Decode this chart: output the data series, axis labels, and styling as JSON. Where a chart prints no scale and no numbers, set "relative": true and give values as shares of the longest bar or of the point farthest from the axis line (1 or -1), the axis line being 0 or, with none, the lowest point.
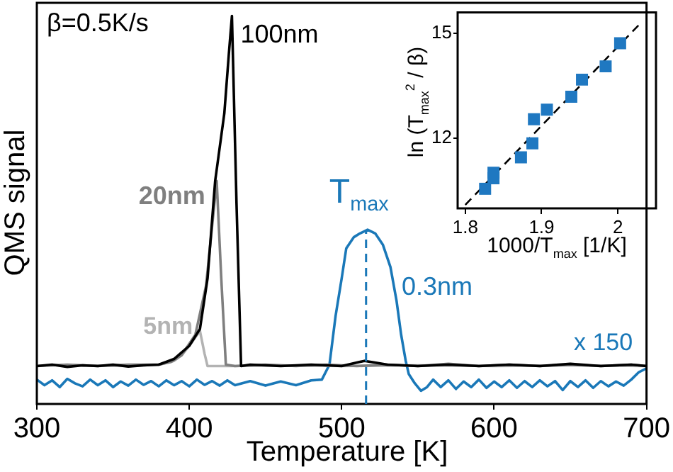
{
  "chart_data": [
    {
      "type": "line",
      "xlabel": "Temperature  [K]",
      "ylabel": "QMS signal",
      "relative": true,
      "xlim": [
        300,
        700
      ],
      "xticks": [
        300,
        400,
        500,
        600,
        700
      ],
      "tick_labels": "x",
      "legend": false,
      "grid": false,
      "annotations": [
        "β=0.5K/s",
        "x 150"
      ],
      "ref_lines": [
        {
          "axis": "x",
          "value": 516,
          "label": "T$_{max}$",
          "color": "#1a78b8",
          "line_style": "dashed"
        }
      ],
      "series": [
        {
          "name": "100nm",
          "color": "#000000",
          "x": [
            300,
            310,
            320,
            330,
            340,
            350,
            360,
            370,
            380,
            390,
            400,
            407,
            412,
            417,
            423,
            426,
            428,
            431,
            434,
            440,
            460,
            480,
            500,
            515,
            530,
            550,
            570,
            590,
            610,
            630,
            650,
            670,
            690,
            700
          ],
          "values": [
            0.066,
            0.07,
            0.064,
            0.068,
            0.066,
            0.07,
            0.065,
            0.068,
            0.07,
            0.085,
            0.12,
            0.165,
            0.3,
            0.56,
            0.74,
            0.9,
            1,
            0.5,
            0.066,
            0.07,
            0.066,
            0.07,
            0.066,
            0.08,
            0.07,
            0.066,
            0.07,
            0.066,
            0.07,
            0.066,
            0.072,
            0.066,
            0.07,
            0.066
          ]
        },
        {
          "name": "20nm",
          "color": "#7f7f7f",
          "x": [
            300,
            320,
            340,
            360,
            380,
            388,
            395,
            404,
            411,
            418,
            421,
            424,
            430,
            450,
            470,
            490,
            510,
            530,
            550,
            570,
            590,
            610,
            630,
            650,
            670,
            690,
            700
          ],
          "values": [
            0.066,
            0.07,
            0.066,
            0.07,
            0.07,
            0.077,
            0.095,
            0.15,
            0.28,
            0.56,
            0.3,
            0.07,
            0.066,
            0.07,
            0.066,
            0.07,
            0.066,
            0.07,
            0.066,
            0.072,
            0.066,
            0.07,
            0.066,
            0.07,
            0.066,
            0.07,
            0.066
          ]
        },
        {
          "name": "5nm",
          "color": "#b3b3b3",
          "x": [
            330,
            360,
            380,
            390,
            395,
            400,
            407,
            410,
            412,
            430,
            460,
            500,
            550,
            600,
            650,
            700
          ],
          "values": [
            0.068,
            0.066,
            0.07,
            0.08,
            0.095,
            0.12,
            0.16,
            0.1,
            0.066,
            0.066,
            0.068,
            0.066,
            0.068,
            0.066,
            0.068,
            0.066
          ]
        },
        {
          "name": "0.3nm",
          "color": "#1a78b8",
          "x": [
            300,
            305,
            310,
            315,
            320,
            325,
            330,
            335,
            340,
            345,
            350,
            355,
            360,
            365,
            370,
            375,
            380,
            385,
            390,
            395,
            400,
            405,
            410,
            415,
            420,
            425,
            430,
            440,
            450,
            460,
            470,
            480,
            487,
            492,
            496,
            500,
            503,
            508,
            512,
            517,
            522,
            527,
            532,
            536,
            539,
            542,
            544,
            548,
            552,
            556,
            560,
            565,
            570,
            575,
            580,
            585,
            590,
            595,
            600,
            605,
            610,
            615,
            620,
            625,
            630,
            635,
            640,
            645,
            650,
            655,
            660,
            665,
            670,
            675,
            680,
            685,
            690,
            695,
            700
          ],
          "values": [
            0.03,
            0.015,
            0.028,
            0.01,
            0.032,
            0.02,
            0.012,
            0.03,
            0.015,
            0.028,
            0.01,
            0.025,
            0.014,
            0.03,
            0.016,
            0.026,
            0.012,
            0.028,
            0.015,
            0.026,
            0.012,
            0.03,
            0.016,
            0.026,
            0.014,
            0.028,
            0.015,
            0.026,
            0.014,
            0.025,
            0.015,
            0.028,
            0.03,
            0.07,
            0.2,
            0.3,
            0.38,
            0.41,
            0.42,
            0.43,
            0.42,
            0.39,
            0.33,
            0.24,
            0.15,
            0.08,
            0.045,
            0.02,
            0,
            0.01,
            0.03,
            0.01,
            0.028,
            0.005,
            0.025,
            0.01,
            0.03,
            0.008,
            0.025,
            0.01,
            0.028,
            0.008,
            0.026,
            0.01,
            0.028,
            0.012,
            0.026,
            0.002,
            0.026,
            0.01,
            0.028,
            0.008,
            0.026,
            0.012,
            0.025,
            0.014,
            0.03,
            0.05,
            0.06
          ]
        }
      ]
    },
    {
      "type": "scatter",
      "xlabel": "1000/T$_{max}$ [1/K]",
      "ylabel": "ln (T$_{max}$$^{2}$ / β)",
      "xlim": [
        1.79,
        2.05
      ],
      "xticks": [
        1.8,
        1.9,
        2
      ],
      "ylim": [
        10,
        15.6
      ],
      "yticks": [
        12,
        15
      ],
      "legend": false,
      "grid": false,
      "series": [
        {
          "color": "#1f78c1",
          "marker": "square",
          "x": [
            1.826,
            1.837,
            1.837,
            1.873,
            1.888,
            1.89,
            1.907,
            1.939,
            1.953,
            1.984,
            2.003
          ],
          "values": [
            10.56,
            10.86,
            11.02,
            11.46,
            11.86,
            12.55,
            12.82,
            13.19,
            13.68,
            14.06,
            14.72
          ]
        },
        {
          "type": "line",
          "color": "#000000",
          "line_style": "dashed",
          "x": [
            1.8,
            2.03
          ],
          "values": [
            10.1,
            15.3
          ]
        }
      ]
    }
  ]
}
